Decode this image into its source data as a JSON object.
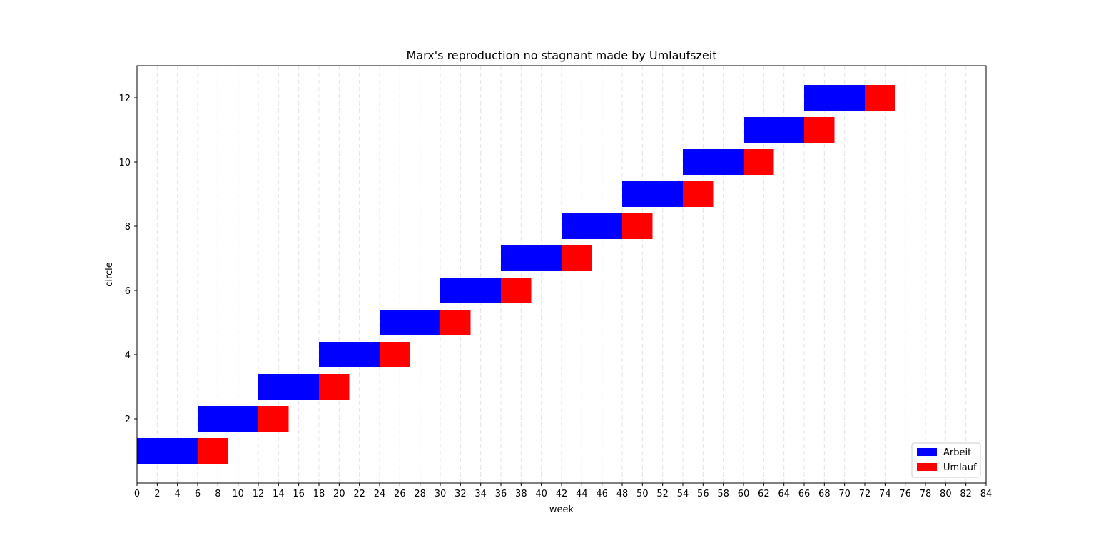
{
  "chart_data": {
    "type": "bar",
    "orientation": "horizontal",
    "stacked": true,
    "title": "Marx's reproduction no stagnant made by Umlaufszeit",
    "xlabel": "week",
    "ylabel": "circle",
    "xlim": [
      0,
      84
    ],
    "ylim": [
      0,
      13
    ],
    "x_ticks": [
      0,
      2,
      4,
      6,
      8,
      10,
      12,
      14,
      16,
      18,
      20,
      22,
      24,
      26,
      28,
      30,
      32,
      34,
      36,
      38,
      40,
      42,
      44,
      46,
      48,
      50,
      52,
      54,
      56,
      58,
      60,
      62,
      64,
      66,
      68,
      70,
      72,
      74,
      76,
      78,
      80,
      82,
      84
    ],
    "y_ticks": [
      2,
      4,
      6,
      8,
      10,
      12
    ],
    "x_grid": true,
    "y_grid": false,
    "legend_position": "lower-right",
    "circles": [
      1,
      2,
      3,
      4,
      5,
      6,
      7,
      8,
      9,
      10,
      11,
      12
    ],
    "series": [
      {
        "name": "Arbeit",
        "color": "#0000ff",
        "start": [
          0,
          6,
          12,
          18,
          24,
          30,
          36,
          42,
          48,
          54,
          60,
          66
        ],
        "duration": [
          6,
          6,
          6,
          6,
          6,
          6,
          6,
          6,
          6,
          6,
          6,
          6
        ]
      },
      {
        "name": "Umlauf",
        "color": "#ff0000",
        "start": [
          6,
          12,
          18,
          24,
          30,
          36,
          42,
          48,
          54,
          60,
          66,
          72
        ],
        "duration": [
          3,
          3,
          3,
          3,
          3,
          3,
          3,
          3,
          3,
          3,
          3,
          3
        ]
      }
    ]
  }
}
